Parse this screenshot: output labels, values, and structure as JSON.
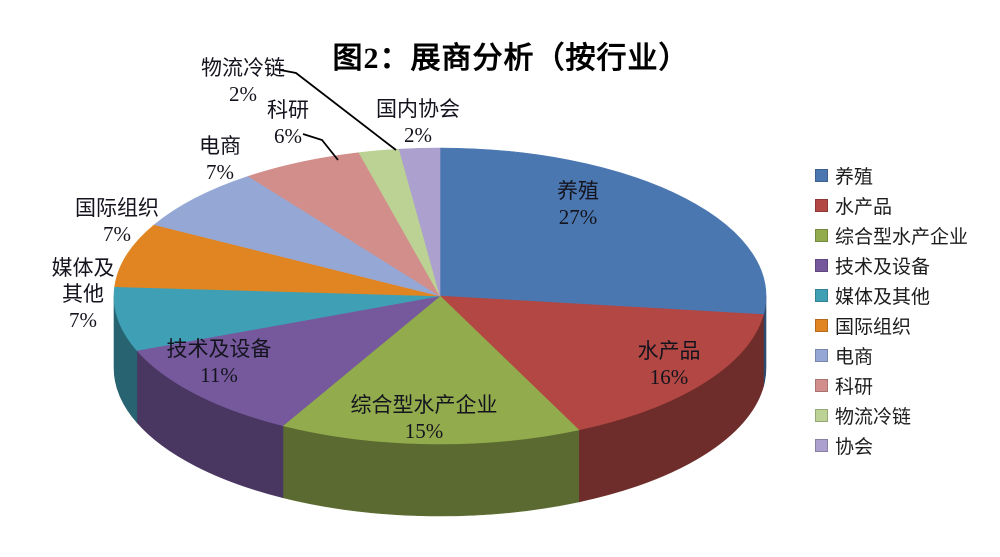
{
  "title": "图2：展商分析（按行业）",
  "chart_data": {
    "type": "pie",
    "style": "3d",
    "title": "图2：展商分析（按行业）",
    "unit": "%",
    "start_angle_deg": 0,
    "direction": "clockwise",
    "legend_position": "right",
    "slices": [
      {
        "label": "养殖",
        "legend": "养殖",
        "value": 27,
        "color": "#4B77B1"
      },
      {
        "label": "水产品",
        "legend": "水产品",
        "value": 16,
        "color": "#B24743"
      },
      {
        "label": "综合型水产企业",
        "legend": "综合型水产企业",
        "value": 15,
        "color": "#92AB4D"
      },
      {
        "label": "技术及设备",
        "legend": "技术及设备",
        "value": 11,
        "color": "#75599C"
      },
      {
        "label": "媒体及其他",
        "legend": "媒体及其他",
        "value": 7,
        "color": "#3FA0B5"
      },
      {
        "label": "国际组织",
        "legend": "国际组织",
        "value": 7,
        "color": "#E08521"
      },
      {
        "label": "电商",
        "legend": "电商",
        "value": 7,
        "color": "#95A8D5"
      },
      {
        "label": "科研",
        "legend": "科研",
        "value": 6,
        "color": "#D18E8B"
      },
      {
        "label": "物流冷链",
        "legend": "物流冷链",
        "value": 2,
        "color": "#BBD294"
      },
      {
        "label": "国内协会",
        "legend": "协会",
        "value": 2,
        "color": "#ACA0CE"
      }
    ]
  }
}
